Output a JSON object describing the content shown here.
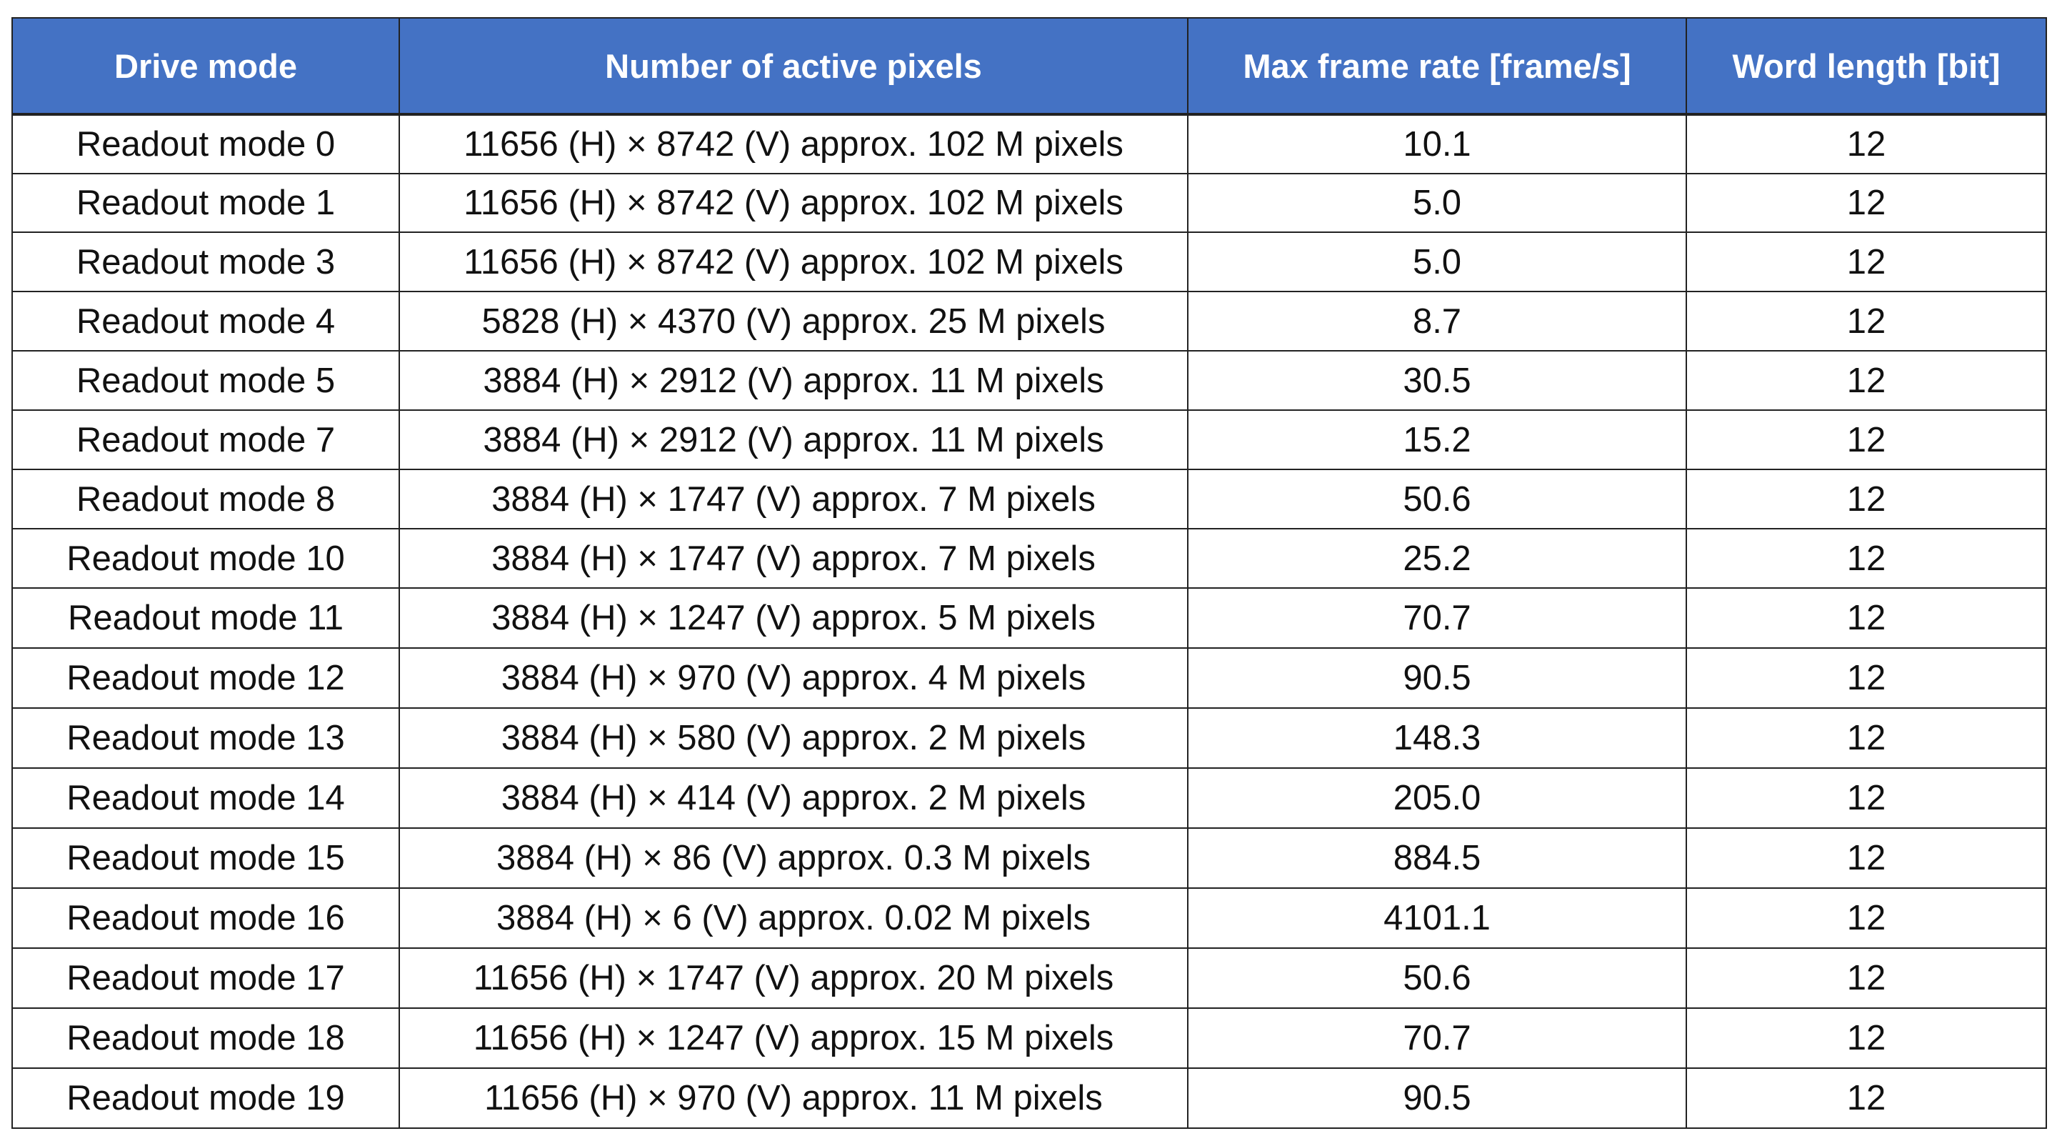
{
  "table": {
    "headers": [
      "Drive mode",
      "Number of active pixels",
      "Max frame rate [frame/s]",
      "Word length [bit]"
    ],
    "rows": [
      [
        "Readout mode 0",
        "11656 (H) × 8742 (V) approx. 102 M pixels",
        "10.1",
        "12"
      ],
      [
        "Readout mode 1",
        "11656 (H) × 8742 (V) approx. 102 M pixels",
        "5.0",
        "12"
      ],
      [
        "Readout mode 3",
        "11656 (H) × 8742 (V) approx. 102 M pixels",
        "5.0",
        "12"
      ],
      [
        "Readout mode 4",
        "5828 (H) × 4370 (V) approx. 25 M pixels",
        "8.7",
        "12"
      ],
      [
        "Readout mode 5",
        "3884 (H) × 2912 (V) approx. 11 M pixels",
        "30.5",
        "12"
      ],
      [
        "Readout mode 7",
        "3884 (H) × 2912 (V) approx. 11 M pixels",
        "15.2",
        "12"
      ],
      [
        "Readout mode 8",
        "3884 (H) × 1747 (V) approx. 7 M pixels",
        "50.6",
        "12"
      ],
      [
        "Readout mode 10",
        "3884 (H) × 1747 (V) approx. 7 M pixels",
        "25.2",
        "12"
      ],
      [
        "Readout mode 11",
        "3884 (H) × 1247 (V) approx. 5 M pixels",
        "70.7",
        "12"
      ],
      [
        "Readout mode 12",
        "3884 (H) × 970 (V) approx. 4 M pixels",
        "90.5",
        "12"
      ],
      [
        "Readout mode 13",
        "3884 (H) × 580 (V) approx. 2 M pixels",
        "148.3",
        "12"
      ],
      [
        "Readout mode 14",
        "3884 (H) × 414 (V) approx. 2 M pixels",
        "205.0",
        "12"
      ],
      [
        "Readout mode 15",
        "3884 (H) × 86 (V) approx. 0.3 M pixels",
        "884.5",
        "12"
      ],
      [
        "Readout mode 16",
        "3884 (H) × 6 (V) approx. 0.02 M pixels",
        "4101.1",
        "12"
      ],
      [
        "Readout mode 17",
        "11656 (H) × 1747 (V) approx. 20 M pixels",
        "50.6",
        "12"
      ],
      [
        "Readout mode 18",
        "11656 (H) × 1247 (V) approx. 15 M pixels",
        "70.7",
        "12"
      ],
      [
        "Readout mode 19",
        "11656 (H) × 970 (V) approx. 11 M pixels",
        "90.5",
        "12"
      ]
    ]
  },
  "colors": {
    "header_background": "#4472c4",
    "header_text": "#ffffff",
    "border": "#222222"
  }
}
